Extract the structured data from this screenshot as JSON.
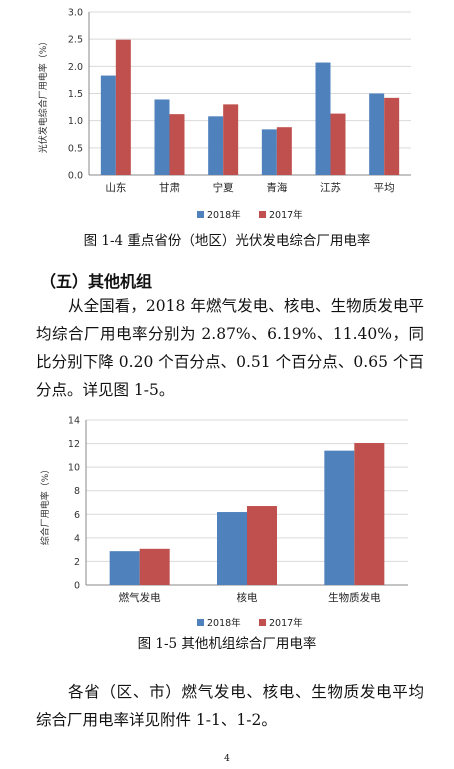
{
  "chart_data": [
    {
      "type": "bar",
      "categories": [
        "山东",
        "甘肃",
        "宁夏",
        "青海",
        "江苏",
        "平均"
      ],
      "series": [
        {
          "name": "2018年",
          "values": [
            1.83,
            1.39,
            1.08,
            0.84,
            2.07,
            1.5
          ]
        },
        {
          "name": "2017年",
          "values": [
            2.49,
            1.12,
            1.3,
            0.88,
            1.13,
            1.42
          ]
        }
      ],
      "ylabel": "光伏发电综合厂用电率（%）",
      "ylim": [
        0,
        3.0
      ],
      "yticks": [
        "0.0",
        "0.5",
        "1.0",
        "1.5",
        "2.0",
        "2.5",
        "3.0"
      ],
      "legend": "bottom",
      "grid": true,
      "colors": [
        "#4f81bd",
        "#c0504d"
      ]
    },
    {
      "type": "bar",
      "categories": [
        "燃气发电",
        "核电",
        "生物质发电"
      ],
      "series": [
        {
          "name": "2018年",
          "values": [
            2.87,
            6.19,
            11.4
          ]
        },
        {
          "name": "2017年",
          "values": [
            3.07,
            6.7,
            12.05
          ]
        }
      ],
      "ylabel": "综合厂用电率（%）",
      "ylim": [
        0,
        14
      ],
      "yticks": [
        "0",
        "2",
        "4",
        "6",
        "8",
        "10",
        "12",
        "14"
      ],
      "legend": "bottom",
      "grid": true,
      "colors": [
        "#4f81bd",
        "#c0504d"
      ]
    }
  ],
  "captions": {
    "fig1": "图 1-4 重点省份（地区）光伏发电综合厂用电率",
    "fig2": "图 1-5 其他机组综合厂用电率"
  },
  "section_heading": "（五）其他机组",
  "paragraphs": {
    "p1": "从全国看，2018 年燃气发电、核电、生物质发电平均综合厂用电率分别为 2.87%、6.19%、11.40%，同比分别下降 0.20 个百分点、0.51 个百分点、0.65 个百分点。详见图 1-5。",
    "p2": "各省（区、市）燃气发电、核电、生物质发电平均综合厂用电率详见附件 1-1、1-2。"
  },
  "page_number": "4"
}
